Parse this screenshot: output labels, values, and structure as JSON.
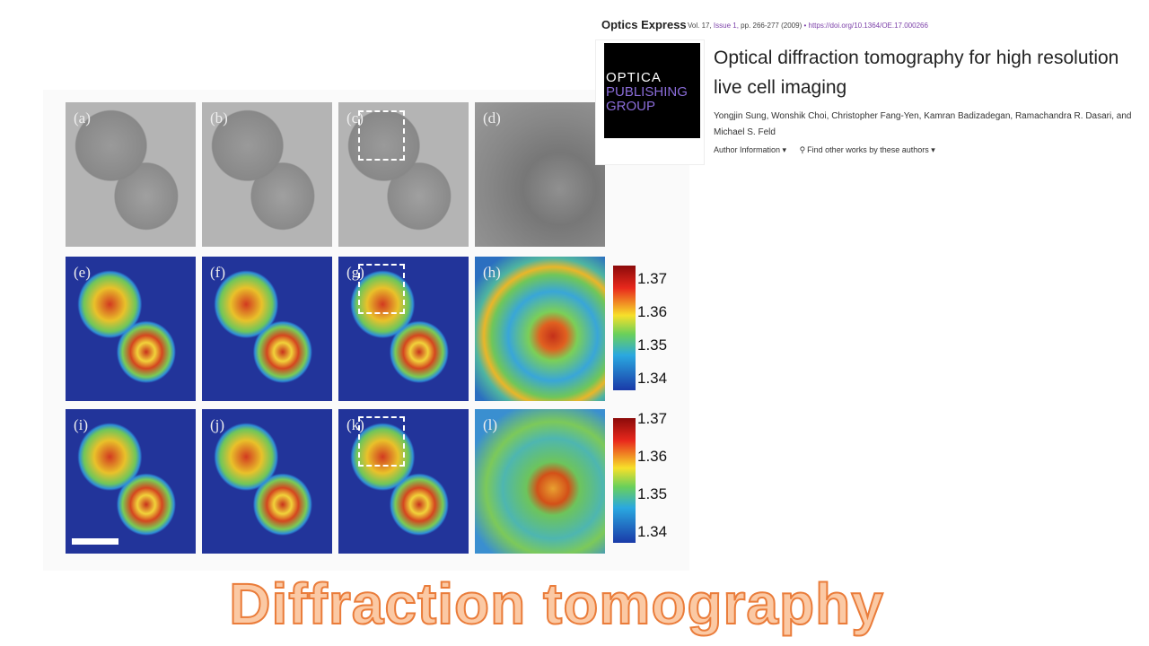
{
  "journal": {
    "name": "Optics Express",
    "volume": "Vol. 17,",
    "issue": "Issue 1,",
    "pages": "pp. 266-277",
    "year": "(2009)",
    "doi": "• https://doi.org/10.1364/OE.17.000266"
  },
  "logo": {
    "line1": "OPTICA",
    "line2": "PUBLISHING",
    "line3": "GROUP"
  },
  "article": {
    "title": "Optical diffraction tomography for high resolution live cell imaging",
    "authors": "Yongjin Sung, Wonshik Choi, Christopher Fang-Yen, Kamran Badizadegan, Ramachandra R. Dasari, and Michael S. Feld",
    "author_info": "Author Information ▾",
    "find_other": "Find other works by these authors ▾"
  },
  "figure": {
    "panels": [
      "(a)",
      "(b)",
      "(c)",
      "(d)",
      "(e)",
      "(f)",
      "(g)",
      "(h)",
      "(i)",
      "(j)",
      "(k)",
      "(l)"
    ],
    "colorbar_ticks": [
      "1.37",
      "1.36",
      "1.35",
      "1.34"
    ]
  },
  "caption": "Diffraction tomography"
}
